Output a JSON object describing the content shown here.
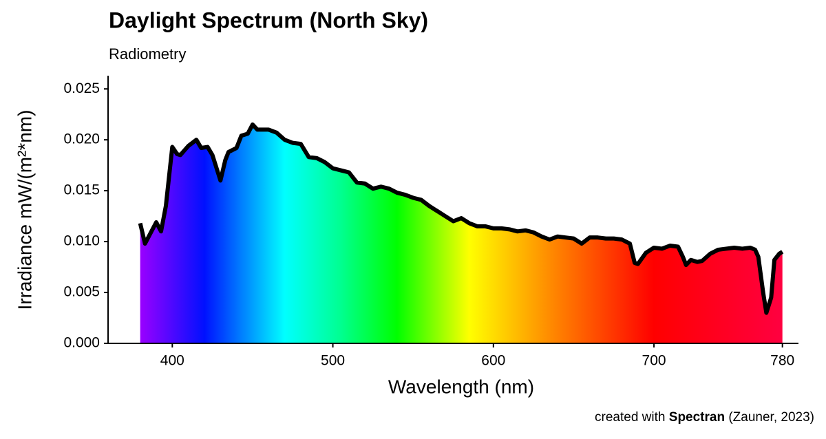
{
  "chart_data": {
    "type": "area",
    "title": "Daylight Spectrum (North Sky)",
    "subtitle": "Radiometry",
    "xlabel": "Wavelength (nm)",
    "ylabel": "Irradiance  mW/(m²*nm)",
    "caption": [
      "created with",
      "Spectran",
      "(Zauner, 2023)"
    ],
    "line_color": "#000000",
    "xlim": [
      360,
      790
    ],
    "xticks": [
      400,
      500,
      600,
      700,
      780
    ],
    "ylim": [
      0,
      0.0263
    ],
    "yticks": [
      {
        "value": 0,
        "label": "0.000"
      },
      0.005,
      {
        "value": 0.01,
        "label": "0.010"
      },
      0.015,
      {
        "value": 0.02,
        "label": "0.020"
      },
      0.025
    ],
    "x": [
      380,
      383,
      390,
      393,
      396,
      400,
      403,
      405,
      410,
      415,
      418,
      422,
      425,
      430,
      433,
      435,
      440,
      443,
      447,
      450,
      453,
      460,
      465,
      470,
      475,
      480,
      485,
      490,
      495,
      500,
      505,
      510,
      515,
      520,
      525,
      530,
      535,
      540,
      545,
      550,
      555,
      560,
      565,
      570,
      575,
      580,
      585,
      590,
      595,
      600,
      605,
      610,
      615,
      620,
      625,
      630,
      635,
      640,
      645,
      650,
      655,
      660,
      665,
      670,
      675,
      680,
      685,
      688,
      690,
      695,
      700,
      705,
      710,
      715,
      718,
      720,
      723,
      727,
      730,
      735,
      740,
      745,
      750,
      755,
      760,
      763,
      765,
      768,
      770,
      773,
      775,
      778,
      780
    ],
    "values": [
      0.0118,
      0.0098,
      0.0119,
      0.011,
      0.0135,
      0.0193,
      0.0186,
      0.0185,
      0.0194,
      0.02,
      0.0192,
      0.0193,
      0.0185,
      0.016,
      0.018,
      0.0188,
      0.0192,
      0.0204,
      0.0206,
      0.0215,
      0.021,
      0.021,
      0.0207,
      0.02,
      0.0197,
      0.0196,
      0.0183,
      0.0182,
      0.0178,
      0.0172,
      0.017,
      0.0168,
      0.0158,
      0.0157,
      0.0152,
      0.0154,
      0.0152,
      0.0148,
      0.0146,
      0.0143,
      0.0141,
      0.0135,
      0.013,
      0.0125,
      0.012,
      0.0123,
      0.0118,
      0.0115,
      0.0115,
      0.0113,
      0.0113,
      0.0112,
      0.011,
      0.0111,
      0.0109,
      0.0105,
      0.0102,
      0.0105,
      0.0104,
      0.0103,
      0.0098,
      0.0104,
      0.0104,
      0.0103,
      0.0103,
      0.0102,
      0.0098,
      0.0079,
      0.0078,
      0.0089,
      0.0094,
      0.0093,
      0.0096,
      0.0095,
      0.0085,
      0.0077,
      0.0082,
      0.008,
      0.0081,
      0.0088,
      0.0092,
      0.0093,
      0.0094,
      0.0093,
      0.0094,
      0.0092,
      0.0085,
      0.005,
      0.003,
      0.0045,
      0.0082,
      0.0088,
      0.009
    ]
  }
}
